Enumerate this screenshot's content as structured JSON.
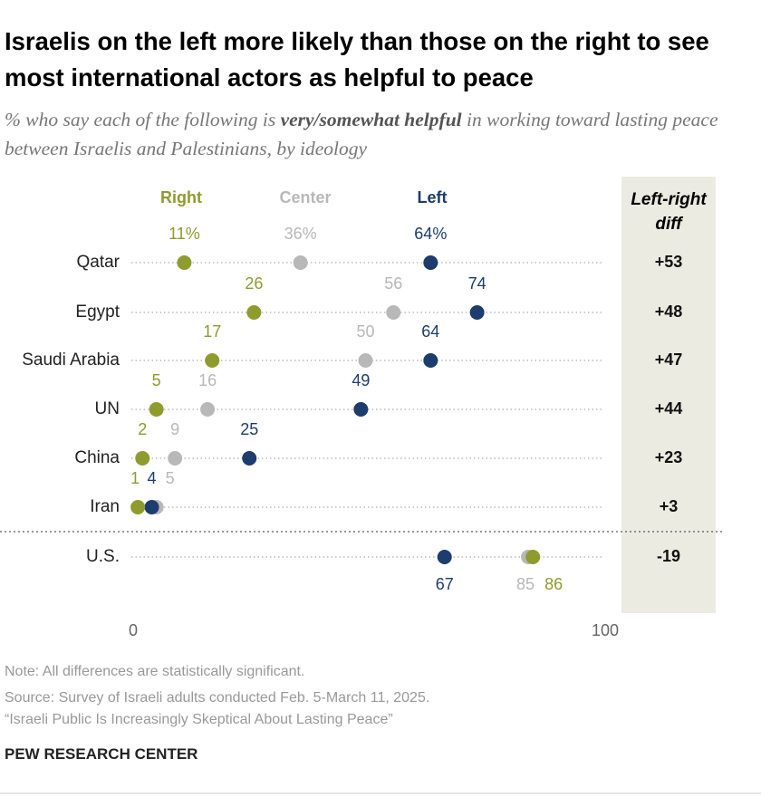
{
  "chart_data": {
    "type": "dot",
    "title": "Israelis on the left more likely than those on the right to see most international actors as helpful to peace",
    "subtitle": [
      "% who say each of the following is ",
      "very/somewhat helpful",
      " in working toward lasting peace between Israelis and Palestinians, by ideology"
    ],
    "categories": [
      "Qatar",
      "Egypt",
      "Saudi Arabia",
      "UN",
      "China",
      "Iran",
      "U.S."
    ],
    "series": [
      {
        "name": "Right",
        "color": "#8f9b2d",
        "values": [
          11,
          26,
          17,
          5,
          2,
          1,
          86
        ],
        "value_labels": [
          "11%",
          "26",
          "17",
          "5",
          "2",
          "1",
          "86"
        ]
      },
      {
        "name": "Center",
        "color": "#b8b8b8",
        "values": [
          36,
          56,
          50,
          16,
          9,
          5,
          85
        ],
        "value_labels": [
          "36%",
          "56",
          "50",
          "16",
          "9",
          "5",
          "85"
        ]
      },
      {
        "name": "Left",
        "color": "#1c3d6e",
        "values": [
          64,
          74,
          64,
          49,
          25,
          4,
          67
        ],
        "value_labels": [
          "64%",
          "74",
          "64",
          "49",
          "25",
          "4",
          "67"
        ]
      }
    ],
    "diff": {
      "header": "Left-right diff",
      "values": [
        53,
        48,
        47,
        44,
        23,
        3,
        -19
      ],
      "value_labels": [
        "+53",
        "+48",
        "+47",
        "+44",
        "+23",
        "+3",
        "-19"
      ]
    },
    "xlim": [
      0,
      100
    ],
    "xticks": [
      0,
      100
    ],
    "notes": [
      "Note: All differences are statistically significant.",
      "Source: Survey of Israeli adults conducted Feb. 5-March 11, 2025.",
      "“Israeli Public Is Increasingly Skeptical About Lasting Peace”"
    ],
    "source": "PEW RESEARCH CENTER"
  }
}
